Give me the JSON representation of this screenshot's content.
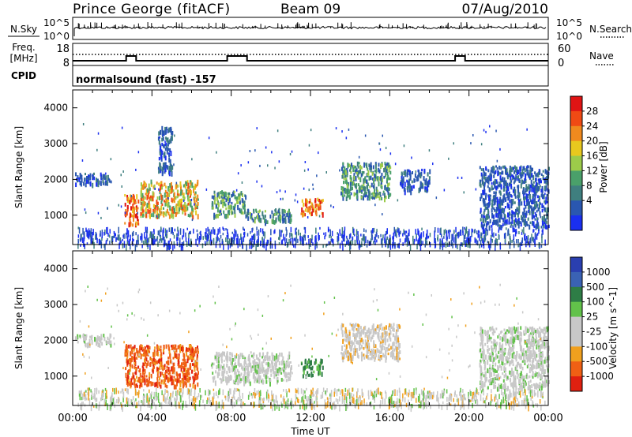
{
  "header": {
    "station": "Prince George (fitACF)",
    "beam": "Beam 09",
    "date": "07/Aug/2010"
  },
  "sky_panel": {
    "left_label": "N.Sky",
    "right_label": "N.Search",
    "tick_top": "10^5",
    "tick_bottom": "10^0"
  },
  "freq_panel": {
    "left_label": "Freq.",
    "left_unit": "[MHz]",
    "left_ticks": [
      "18",
      "8"
    ],
    "right_label": "Nave",
    "right_ticks": [
      "60",
      "0"
    ]
  },
  "cpid_panel": {
    "label": "CPID",
    "program": "normalsound (fast) -157"
  },
  "colors": {
    "power_scale": [
      "#1a2ff0",
      "#2a57b0",
      "#3f7f7f",
      "#4aa06a",
      "#9ccb4a",
      "#e8c81e",
      "#f08a1e",
      "#f04a14",
      "#e01414"
    ],
    "velocity_scale": [
      "#2a3fb0",
      "#3a62b4",
      "#2e7d46",
      "#62c24a",
      "#c8c8c8",
      "#c8c8c8",
      "#f0a01e",
      "#f06014",
      "#e02010"
    ]
  },
  "chart_data": [
    {
      "type": "heatmap",
      "name": "power",
      "xlabel": "",
      "ylabel": "Slant Range [km]",
      "xlim": [
        0,
        24
      ],
      "ylim": [
        180,
        4500
      ],
      "yticks": [
        "1000",
        "2000",
        "3000",
        "4000"
      ],
      "colorbar": {
        "label": "Power [dB]",
        "ticks": [
          "4",
          "8",
          "12",
          "16",
          "20",
          "24",
          "28"
        ]
      },
      "features": [
        {
          "t0": 0.1,
          "t1": 1.9,
          "r0": 1900,
          "r1": 2200,
          "level": "low"
        },
        {
          "t0": 2.6,
          "t1": 3.3,
          "r0": 750,
          "r1": 1600,
          "level": "high"
        },
        {
          "t0": 3.4,
          "t1": 6.3,
          "r0": 1000,
          "r1": 2000,
          "level": "mid-high"
        },
        {
          "t0": 4.3,
          "t1": 5.0,
          "r0": 2200,
          "r1": 3500,
          "level": "low"
        },
        {
          "t0": 7.0,
          "t1": 8.7,
          "r0": 1000,
          "r1": 1700,
          "level": "low-mid"
        },
        {
          "t0": 8.7,
          "t1": 11.0,
          "r0": 850,
          "r1": 1200,
          "level": "low-mid"
        },
        {
          "t0": 11.5,
          "t1": 12.6,
          "r0": 1050,
          "r1": 1500,
          "level": "high"
        },
        {
          "t0": 13.5,
          "t1": 16.0,
          "r0": 1500,
          "r1": 2500,
          "level": "low-mid"
        },
        {
          "t0": 16.5,
          "t1": 18.0,
          "r0": 1700,
          "r1": 2300,
          "level": "low"
        },
        {
          "t0": 20.5,
          "t1": 24.0,
          "r0": 700,
          "r1": 2400,
          "level": "low"
        }
      ]
    },
    {
      "type": "heatmap",
      "name": "velocity",
      "xlabel": "Time UT",
      "ylabel": "Slant Range [km]",
      "xlim": [
        0,
        24
      ],
      "ylim": [
        180,
        4500
      ],
      "xticks": [
        "00:00",
        "04:00",
        "08:00",
        "12:00",
        "16:00",
        "20:00",
        "00:00"
      ],
      "yticks": [
        "1000",
        "2000",
        "3000",
        "4000"
      ],
      "colorbar": {
        "label": "Velocity [m s^-1]",
        "ticks": [
          "1000",
          "500",
          "100",
          "25",
          "-25",
          "-100",
          "-500",
          "-1000"
        ]
      },
      "features": [
        {
          "t0": 0.1,
          "t1": 1.9,
          "r0": 1900,
          "r1": 2200,
          "level": "near-zero"
        },
        {
          "t0": 2.6,
          "t1": 6.3,
          "r0": 750,
          "r1": 1900,
          "level": "negative-large"
        },
        {
          "t0": 7.0,
          "t1": 11.0,
          "r0": 850,
          "r1": 1700,
          "level": "near-zero"
        },
        {
          "t0": 11.5,
          "t1": 12.6,
          "r0": 1050,
          "r1": 1500,
          "level": "positive"
        },
        {
          "t0": 13.5,
          "t1": 16.5,
          "r0": 1500,
          "r1": 2500,
          "level": "near-zero/negative"
        },
        {
          "t0": 20.5,
          "t1": 24.0,
          "r0": 700,
          "r1": 2400,
          "level": "near-zero"
        }
      ]
    }
  ]
}
